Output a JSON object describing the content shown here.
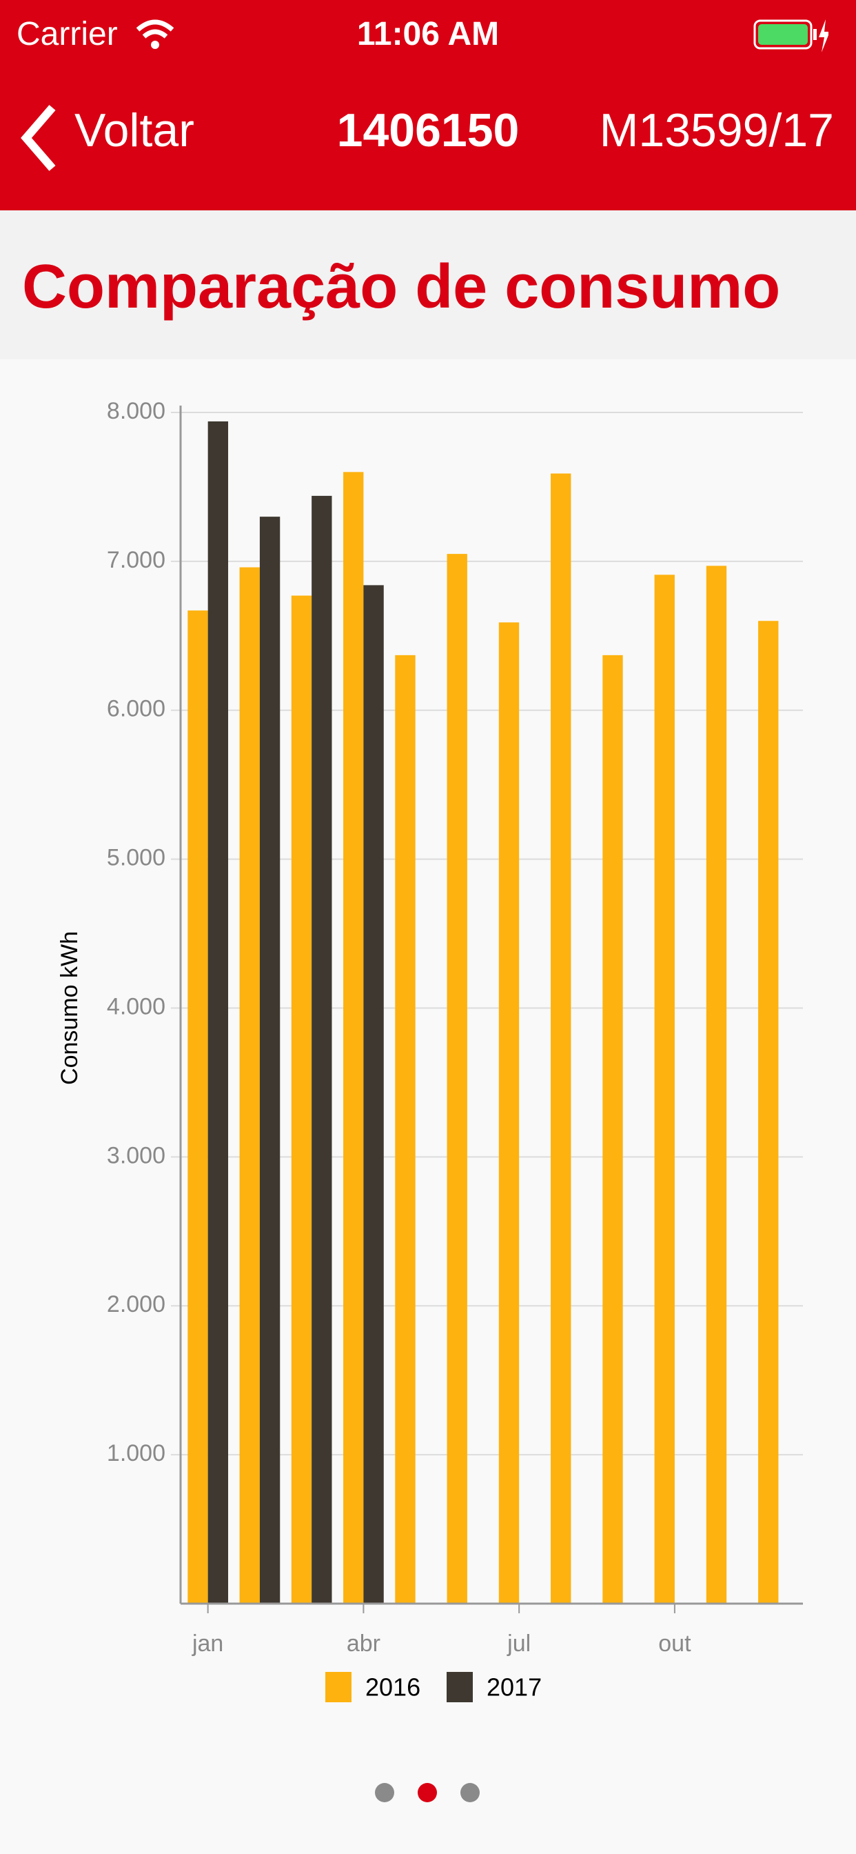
{
  "status_bar": {
    "carrier": "Carrier",
    "time": "11:06 AM"
  },
  "nav": {
    "back": "Voltar",
    "title": "1406150",
    "right": "M13599/17"
  },
  "header": {
    "title": "Comparação de consumo"
  },
  "chart_data": {
    "type": "bar",
    "categories": [
      "jan",
      null,
      null,
      "abr",
      null,
      null,
      "jul",
      null,
      null,
      "out",
      null,
      null
    ],
    "series": [
      {
        "name": "2016",
        "color": "#fdb20f",
        "values": [
          6670,
          6960,
          6770,
          7600,
          6370,
          7050,
          6590,
          7590,
          6370,
          6910,
          6970,
          6600
        ]
      },
      {
        "name": "2017",
        "color": "#3e3830",
        "values": [
          7940,
          7300,
          7440,
          6840,
          null,
          null,
          null,
          null,
          null,
          null,
          null,
          null
        ]
      }
    ],
    "ylabel": "Consumo kWh",
    "ylim": [
      0,
      8000
    ],
    "yticks": [
      {
        "value": 1000,
        "label": "1.000"
      },
      {
        "value": 2000,
        "label": "2.000"
      },
      {
        "value": 3000,
        "label": "3.000"
      },
      {
        "value": 4000,
        "label": "4.000"
      },
      {
        "value": 5000,
        "label": "5.000"
      },
      {
        "value": 6000,
        "label": "6.000"
      },
      {
        "value": 7000,
        "label": "7.000"
      },
      {
        "value": 8000,
        "label": "8.000"
      }
    ],
    "grid": true,
    "legend": "bottom"
  }
}
